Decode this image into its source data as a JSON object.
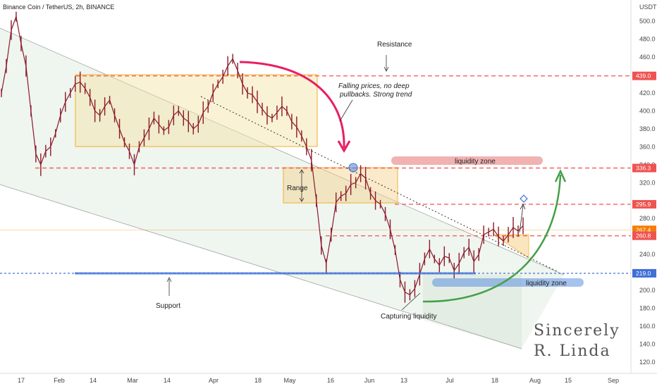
{
  "header": {
    "title": "Binance Coin / TetherUS, 2h, BINANCE",
    "currency": "USDT"
  },
  "colors": {
    "up": "#26a69a",
    "down": "#ef5350",
    "candle": "#8b1a2b",
    "resistance_line": "#ef5350",
    "support_line": "#3f6fd8",
    "channel": "#2e7d32",
    "range_box": "#f5d08a",
    "liquidity_top": "#e57373",
    "liquidity_bottom": "#5c8fe0",
    "green_arrow": "#43a047",
    "red_arrow": "#e91e63"
  },
  "chart_data": {
    "type": "line",
    "title": "Binance Coin / TetherUS, 2h, BINANCE",
    "y_axis": {
      "ticks": [
        "500.0",
        "480.0",
        "460.0",
        "420.0",
        "400.0",
        "380.0",
        "360.0",
        "340.0",
        "320.0",
        "280.0",
        "260.0",
        "240.0",
        "200.0",
        "180.0",
        "160.0",
        "140.0",
        "120.0"
      ],
      "range": [
        110,
        515
      ],
      "unit": "USDT",
      "side": "right"
    },
    "x_axis": {
      "ticks": [
        "17",
        "Feb",
        "14",
        "Mar",
        "14",
        "Apr",
        "18",
        "May",
        "16",
        "Jun",
        "13",
        "Jul",
        "18",
        "Aug",
        "15",
        "Sep"
      ]
    },
    "price_levels": [
      {
        "label": "439.0",
        "value": 439.0,
        "color": "#ef5350"
      },
      {
        "label": "336.3",
        "value": 336.3,
        "color": "#ef5350"
      },
      {
        "label": "295.9",
        "value": 295.9,
        "color": "#ef5350"
      },
      {
        "label": "267.4",
        "value": 267.4,
        "color": "#f57c00"
      },
      {
        "label": "260.8",
        "value": 260.8,
        "color": "#ef5350"
      },
      {
        "label": "219.0",
        "value": 219.0,
        "color": "#3f6fd8"
      }
    ],
    "series": [
      {
        "values": [
          420,
          450,
          490,
          505,
          475,
          450,
          400,
          352,
          340,
          355,
          360,
          375,
          395,
          410,
          420,
          430,
          432,
          425,
          415,
          400,
          395,
          405,
          412,
          395,
          380,
          365,
          355,
          340,
          360,
          370,
          380,
          392,
          385,
          378,
          382,
          395,
          400,
          392,
          388,
          380,
          385,
          398,
          405,
          420,
          430,
          438,
          450,
          458,
          445,
          430,
          420,
          418,
          410,
          402,
          395,
          392,
          398,
          405,
          400,
          388,
          382,
          372,
          360,
          345,
          300,
          250,
          230,
          262,
          298,
          305,
          308,
          318,
          320,
          330,
          325,
          308,
          300,
          296,
          285,
          268,
          245,
          212,
          198,
          195,
          202,
          218,
          235,
          246,
          235,
          228,
          238,
          236,
          222,
          230,
          242,
          248,
          232,
          240,
          262,
          265,
          268,
          260,
          255,
          262,
          270,
          266,
          272
        ]
      }
    ],
    "annotations": {
      "resistance": "Resistance",
      "trend_note_1": "Falling prices, no deep",
      "trend_note_2": "pullbacks. Strong trend",
      "liquidity_top": "liquidity zone",
      "range": "Range",
      "liquidity_bottom": "liquidity zone",
      "support": "Support",
      "capturing": "Capturing liquidity",
      "signature_1": "Sincerely",
      "signature_2": "R. Linda"
    }
  }
}
